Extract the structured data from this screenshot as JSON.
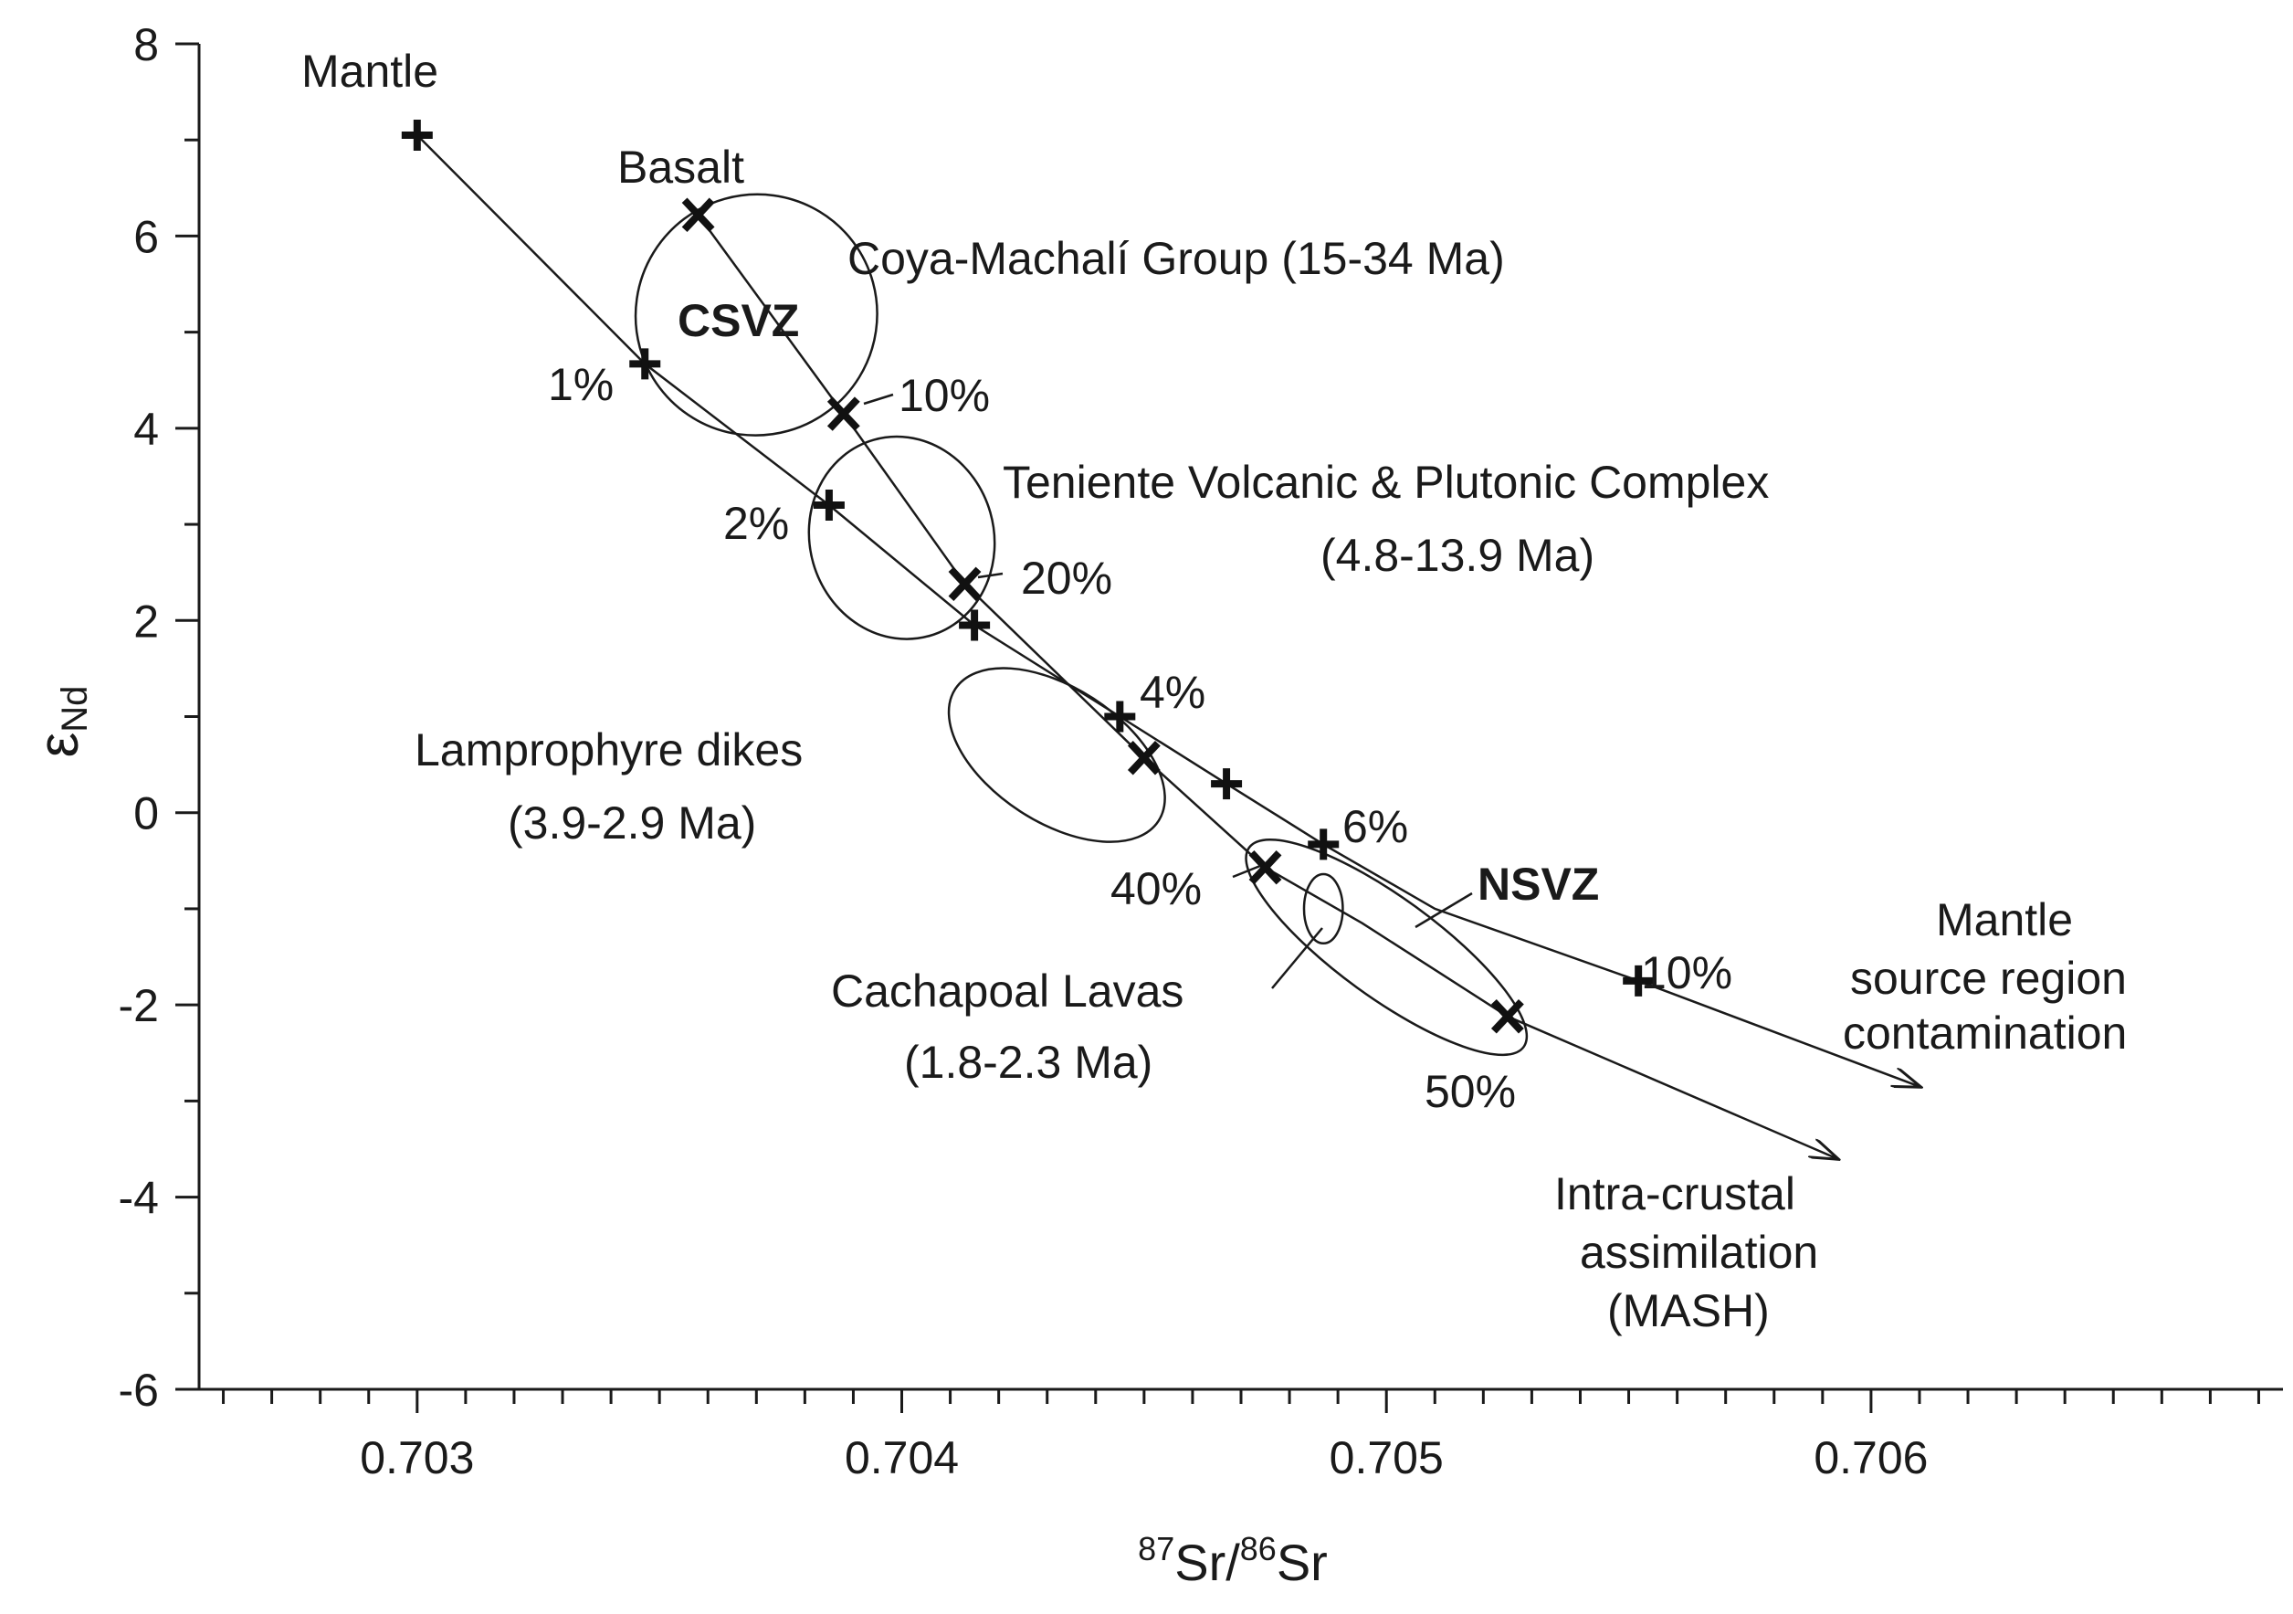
{
  "chart_data": {
    "type": "scatter",
    "title": "",
    "xlabel": {
      "sup1": "87",
      "mid": "Sr/",
      "sup2": "86",
      "end": "Sr"
    },
    "ylabel": {
      "main": "ε",
      "sub": "Nd"
    },
    "xlim": [
      0.70255,
      0.70685
    ],
    "ylim": [
      -6,
      8
    ],
    "x_ticks": [
      {
        "value": 0.703,
        "label": "0.703"
      },
      {
        "value": 0.704,
        "label": "0.704"
      },
      {
        "value": 0.705,
        "label": "0.705"
      },
      {
        "value": 0.706,
        "label": "0.706"
      }
    ],
    "x_minor_step": 0.0001,
    "y_ticks": [
      {
        "value": 8,
        "label": "8"
      },
      {
        "value": 6,
        "label": "6"
      },
      {
        "value": 4,
        "label": "4"
      },
      {
        "value": 2,
        "label": "2"
      },
      {
        "value": 0,
        "label": "0"
      },
      {
        "value": -2,
        "label": "-2"
      },
      {
        "value": -4,
        "label": "-4"
      },
      {
        "value": -6,
        "label": "-6"
      }
    ],
    "y_minor_step": 1,
    "series": [
      {
        "name": "Mantle source region contamination",
        "marker": "plus",
        "curve": [
          [
            0.703,
            7.05
          ],
          [
            0.70347,
            4.67
          ],
          [
            0.70385,
            3.2
          ],
          [
            0.70415,
            1.95
          ],
          [
            0.70445,
            1.0
          ],
          [
            0.70467,
            0.3
          ],
          [
            0.70487,
            -0.33
          ],
          [
            0.7051,
            -1.0
          ],
          [
            0.70552,
            -1.75
          ],
          [
            0.7061,
            -2.85
          ]
        ],
        "arrow_end": [
          0.7061,
          -2.85
        ],
        "points": [
          {
            "x": 0.703,
            "y": 7.05,
            "label": ""
          },
          {
            "x": 0.70347,
            "y": 4.67,
            "label": "1%"
          },
          {
            "x": 0.70385,
            "y": 3.2,
            "label": "2%"
          },
          {
            "x": 0.70415,
            "y": 1.95,
            "label": ""
          },
          {
            "x": 0.70445,
            "y": 1.0,
            "label": "4%"
          },
          {
            "x": 0.70467,
            "y": 0.3,
            "label": ""
          },
          {
            "x": 0.70487,
            "y": -0.33,
            "label": "6%"
          },
          {
            "x": 0.70552,
            "y": -1.75,
            "label": "10%"
          }
        ]
      },
      {
        "name": "Intra-crustal assimilation (MASH)",
        "marker": "x",
        "curve": [
          [
            0.70358,
            6.22
          ],
          [
            0.70388,
            4.15
          ],
          [
            0.70413,
            2.38
          ],
          [
            0.7045,
            0.57
          ],
          [
            0.70475,
            -0.57
          ],
          [
            0.70495,
            -1.15
          ],
          [
            0.70525,
            -2.12
          ],
          [
            0.70593,
            -3.6
          ]
        ],
        "arrow_end": [
          0.70593,
          -3.6
        ],
        "points": [
          {
            "x": 0.70358,
            "y": 6.22,
            "label": ""
          },
          {
            "x": 0.70388,
            "y": 4.15,
            "label": "10%"
          },
          {
            "x": 0.70413,
            "y": 2.38,
            "label": "20%"
          },
          {
            "x": 0.7045,
            "y": 0.57,
            "label": ""
          },
          {
            "x": 0.70475,
            "y": -0.57,
            "label": "40%"
          },
          {
            "x": 0.70525,
            "y": -2.12,
            "label": "50%"
          }
        ]
      }
    ],
    "fields": [
      {
        "name": "CSVZ",
        "cx": 0.7037,
        "cy": 5.18,
        "rx": 0.00025,
        "ry": 1.25,
        "angle": -37
      },
      {
        "name": "Teniente Volcanic & Plutonic Complex",
        "cx": 0.704,
        "cy": 2.86,
        "rx": 0.00019,
        "ry": 1.06,
        "angle": -16
      },
      {
        "name": "Lamprophyre dikes",
        "cx": 0.70432,
        "cy": 0.6,
        "rx": 0.00025,
        "ry": 0.7,
        "angle": 33
      },
      {
        "name": "Cachapoal Lavas",
        "cx": 0.70487,
        "cy": -1.0,
        "rx": 4e-05,
        "ry": 0.36,
        "angle": 0
      },
      {
        "name": "NSVZ",
        "cx": 0.705,
        "cy": -1.4,
        "rx": 0.00035,
        "ry": 0.52,
        "angle": 36
      }
    ],
    "annotations": [
      {
        "text": "Mantle",
        "bold": false
      },
      {
        "text": "Basalt",
        "bold": false
      },
      {
        "text": "Coya-Machalí Group (15-34 Ma)",
        "bold": false
      },
      {
        "text": "CSVZ",
        "bold": true
      },
      {
        "text": "Teniente Volcanic & Plutonic Complex",
        "bold": false
      },
      {
        "text": "(4.8-13.9 Ma)",
        "bold": false
      },
      {
        "text": "Lamprophyre dikes",
        "bold": false
      },
      {
        "text": "(3.9-2.9 Ma)",
        "bold": false
      },
      {
        "text": "NSVZ",
        "bold": true
      },
      {
        "text": "Cachapoal Lavas",
        "bold": false
      },
      {
        "text": "(1.8-2.3 Ma)",
        "bold": false
      },
      {
        "text": "Mantle",
        "bold": false
      },
      {
        "text": "source region",
        "bold": false
      },
      {
        "text": "contamination",
        "bold": false
      },
      {
        "text": "Intra-crustal",
        "bold": false
      },
      {
        "text": "assimilation",
        "bold": false
      },
      {
        "text": "(MASH)",
        "bold": false
      }
    ]
  }
}
